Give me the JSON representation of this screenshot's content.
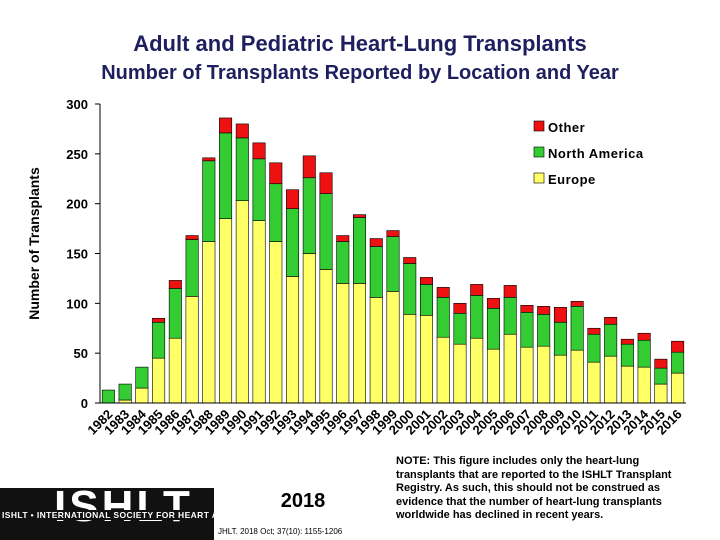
{
  "titles": {
    "main": "Adult and Pediatric Heart-Lung Transplants",
    "sub": "Number of Transplants Reported by Location and Year"
  },
  "note": "NOTE: This figure includes only the heart-lung transplants that are reported to the ISHLT Transplant Registry. As such, this should not be construed as evidence that the number of heart-lung transplants worldwide has declined in recent years.",
  "logo": {
    "brand": "ISHLT",
    "tagline": "ISHLT • INTERNATIONAL SOCIETY FOR HEART AND LUNG TRANSPLANTATION",
    "year": "2018",
    "citation": "JHLT. 2018 Oct; 37(10): 1155-1206"
  },
  "colors": {
    "europe": "#ffff66",
    "north_america": "#33cc33",
    "other": "#ee1111",
    "title": "#1f1f5f"
  },
  "chart_data": {
    "type": "bar",
    "stacked": true,
    "title": "Number of Transplants Reported by Location and Year",
    "xlabel": "",
    "ylabel": "Number of Transplants",
    "ylim": [
      0,
      300
    ],
    "yticks": [
      0,
      50,
      100,
      150,
      200,
      250,
      300
    ],
    "legend_position": "top-right",
    "categories": [
      "1982",
      "1983",
      "1984",
      "1985",
      "1986",
      "1987",
      "1988",
      "1989",
      "1990",
      "1991",
      "1992",
      "1993",
      "1994",
      "1995",
      "1996",
      "1997",
      "1998",
      "1999",
      "2000",
      "2001",
      "2002",
      "2003",
      "2004",
      "2005",
      "2006",
      "2007",
      "2008",
      "2009",
      "2010",
      "2011",
      "2012",
      "2013",
      "2014",
      "2015",
      "2016"
    ],
    "series": [
      {
        "name": "Europe",
        "values": [
          0,
          3,
          15,
          45,
          65,
          107,
          162,
          185,
          203,
          183,
          162,
          127,
          150,
          134,
          120,
          120,
          106,
          112,
          89,
          88,
          66,
          59,
          65,
          54,
          69,
          56,
          57,
          48,
          53,
          41,
          47,
          37,
          36,
          19,
          30
        ]
      },
      {
        "name": "North America",
        "values": [
          13,
          16,
          21,
          36,
          50,
          57,
          81,
          86,
          63,
          62,
          58,
          68,
          76,
          76,
          42,
          66,
          51,
          55,
          51,
          31,
          40,
          31,
          43,
          41,
          37,
          35,
          32,
          33,
          44,
          28,
          32,
          22,
          27,
          16,
          21
        ]
      },
      {
        "name": "Other",
        "values": [
          0,
          0,
          0,
          4,
          8,
          4,
          3,
          15,
          14,
          16,
          21,
          19,
          22,
          21,
          6,
          3,
          8,
          6,
          6,
          7,
          10,
          10,
          11,
          10,
          12,
          7,
          8,
          15,
          5,
          6,
          7,
          5,
          7,
          9,
          11
        ]
      }
    ],
    "legend": [
      "Other",
      "North America",
      "Europe"
    ]
  }
}
